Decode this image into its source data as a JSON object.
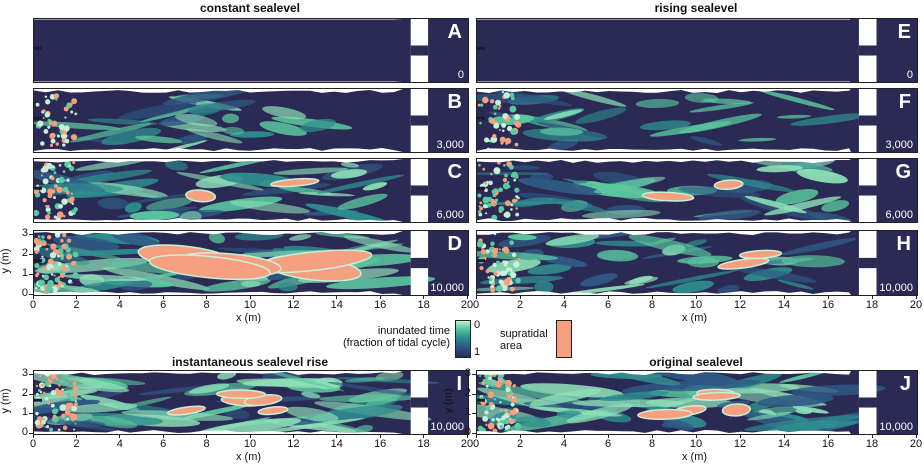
{
  "columns": {
    "left_title": "constant sealevel",
    "right_title": "rising sealevel"
  },
  "panels": [
    {
      "letter": "A",
      "time": "0"
    },
    {
      "letter": "B",
      "time": "3,000"
    },
    {
      "letter": "C",
      "time": "6,000"
    },
    {
      "letter": "D",
      "time": "10,000"
    },
    {
      "letter": "E",
      "time": "0"
    },
    {
      "letter": "F",
      "time": "3,000"
    },
    {
      "letter": "G",
      "time": "6,000"
    },
    {
      "letter": "H",
      "time": "10,000"
    },
    {
      "letter": "I",
      "time": "10,000"
    },
    {
      "letter": "J",
      "time": "10,000"
    }
  ],
  "bottom_titles": {
    "left": "instantaneous sealevel rise",
    "right": "original sealevel"
  },
  "axes": {
    "x_label": "x (m)",
    "y_label": "y (m)",
    "x_ticks": [
      "0",
      "2",
      "4",
      "6",
      "8",
      "10",
      "12",
      "14",
      "16",
      "18",
      "20"
    ],
    "y_ticks": [
      "0",
      "1",
      "2",
      "3"
    ]
  },
  "legend": {
    "colorbar_label_line1": "inundated time",
    "colorbar_label_line2": "(fraction of tidal cycle)",
    "colorbar_top": "0",
    "colorbar_bottom": "1",
    "supratidal_line1": "supratidal",
    "supratidal_line2": "area",
    "colors": {
      "dark": "#2a2a55",
      "mid": "#2f6f8f",
      "light": "#5cc9a0",
      "pale": "#c8f0d8",
      "supratidal": "#f5a080"
    }
  }
}
